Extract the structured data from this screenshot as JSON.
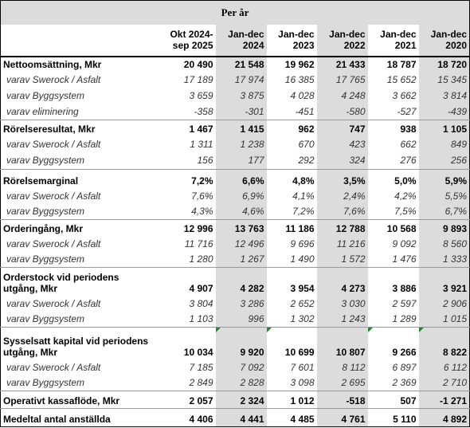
{
  "title": "Per år",
  "table": {
    "columns": [
      "Okt 2024-\nsep 2025",
      "Jan-dec\n2024",
      "Jan-dec\n2023",
      "Jan-dec\n2022",
      "Jan-dec\n2021",
      "Jan-dec\n2020"
    ],
    "rows": [
      {
        "label": "Nettoomsättning, Mkr",
        "emphasis": "bold",
        "cells": [
          "20 490",
          "21 548",
          "19 962",
          "21 433",
          "18 787",
          "18 720"
        ]
      },
      {
        "label": "varav Swerock / Asfalt",
        "emphasis": "italic",
        "cells": [
          "17 189",
          "17 974",
          "16 385",
          "17 765",
          "15 652",
          "15 345"
        ]
      },
      {
        "label": "varav Byggsystem",
        "emphasis": "italic",
        "cells": [
          "3 659",
          "3 875",
          "4 028",
          "4 248",
          "3 662",
          "3 814"
        ]
      },
      {
        "label": "varav eliminering",
        "emphasis": "italic",
        "cells": [
          "-358",
          "-301",
          "-451",
          "-580",
          "-527",
          "-439"
        ]
      },
      {
        "label": "Rörelseresultat, Mkr",
        "emphasis": "bold",
        "cells": [
          "1 467",
          "1 415",
          "962",
          "747",
          "938",
          "1 105"
        ]
      },
      {
        "label": "varav Swerock / Asfalt",
        "emphasis": "italic",
        "cells": [
          "1 311",
          "1 238",
          "670",
          "423",
          "662",
          "849"
        ]
      },
      {
        "label": "varav Byggsystem",
        "emphasis": "italic",
        "cells": [
          "156",
          "177",
          "292",
          "324",
          "276",
          "256"
        ]
      },
      {
        "label": "Rörelsemarginal",
        "emphasis": "bold",
        "cells": [
          "7,2%",
          "6,6%",
          "4,8%",
          "3,5%",
          "5,0%",
          "5,9%"
        ]
      },
      {
        "label": "varav Swerock / Asfalt",
        "emphasis": "italic",
        "cells": [
          "7,6%",
          "6,9%",
          "4,1%",
          "2,4%",
          "4,2%",
          "5,5%"
        ]
      },
      {
        "label": "varav Byggsystem",
        "emphasis": "italic",
        "cells": [
          "4,3%",
          "4,6%",
          "7,2%",
          "7,6%",
          "7,5%",
          "6,7%"
        ]
      },
      {
        "label": "Orderingång, Mkr",
        "emphasis": "bold",
        "cells": [
          "12 996",
          "13 763",
          "11 186",
          "12 788",
          "10 568",
          "9 893"
        ]
      },
      {
        "label": "varav Swerock / Asfalt",
        "emphasis": "italic",
        "cells": [
          "11 716",
          "12 496",
          "9 696",
          "11 216",
          "9 092",
          "8 560"
        ]
      },
      {
        "label": "varav Byggsystem",
        "emphasis": "italic",
        "cells": [
          "1 280",
          "1 267",
          "1 490",
          "1 572",
          "1 476",
          "1 333"
        ]
      },
      {
        "label": "Orderstock vid periodens utgång, Mkr",
        "emphasis": "bold",
        "cells": [
          "4 907",
          "4 282",
          "3 954",
          "4 273",
          "3 886",
          "3 921"
        ]
      },
      {
        "label": "varav Swerock / Asfalt",
        "emphasis": "italic",
        "cells": [
          "3 804",
          "3 286",
          "2 652",
          "3 030",
          "2 597",
          "2 906"
        ]
      },
      {
        "label": "varav Byggsystem",
        "emphasis": "italic",
        "cells": [
          "1 103",
          "996",
          "1 302",
          "1 243",
          "1 289",
          "1 015"
        ]
      },
      {
        "label": "Sysselsatt kapital vid periodens utgång, Mkr",
        "emphasis": "bold",
        "cells": [
          "10 034",
          "9 920",
          "10 699",
          "10 807",
          "9 266",
          "8 822"
        ]
      },
      {
        "label": "varav Swerock / Asfalt",
        "emphasis": "italic",
        "cells": [
          "7 185",
          "7 092",
          "7 601",
          "8 112",
          "6 897",
          "6 112"
        ]
      },
      {
        "label": "varav Byggsystem",
        "emphasis": "italic",
        "cells": [
          "2 849",
          "2 828",
          "3 098",
          "2 695",
          "2 369",
          "2 710"
        ]
      },
      {
        "label": "Operativt kassaflöde, Mkr",
        "emphasis": "bold",
        "cells": [
          "2 057",
          "2 324",
          "1 012",
          "-518",
          "507",
          "-1 271"
        ]
      },
      {
        "label": "Medeltal antal anställda",
        "emphasis": "bold",
        "cells": [
          "4 406",
          "4 441",
          "4 485",
          "4 761",
          "5 110",
          "4 892"
        ]
      }
    ]
  }
}
